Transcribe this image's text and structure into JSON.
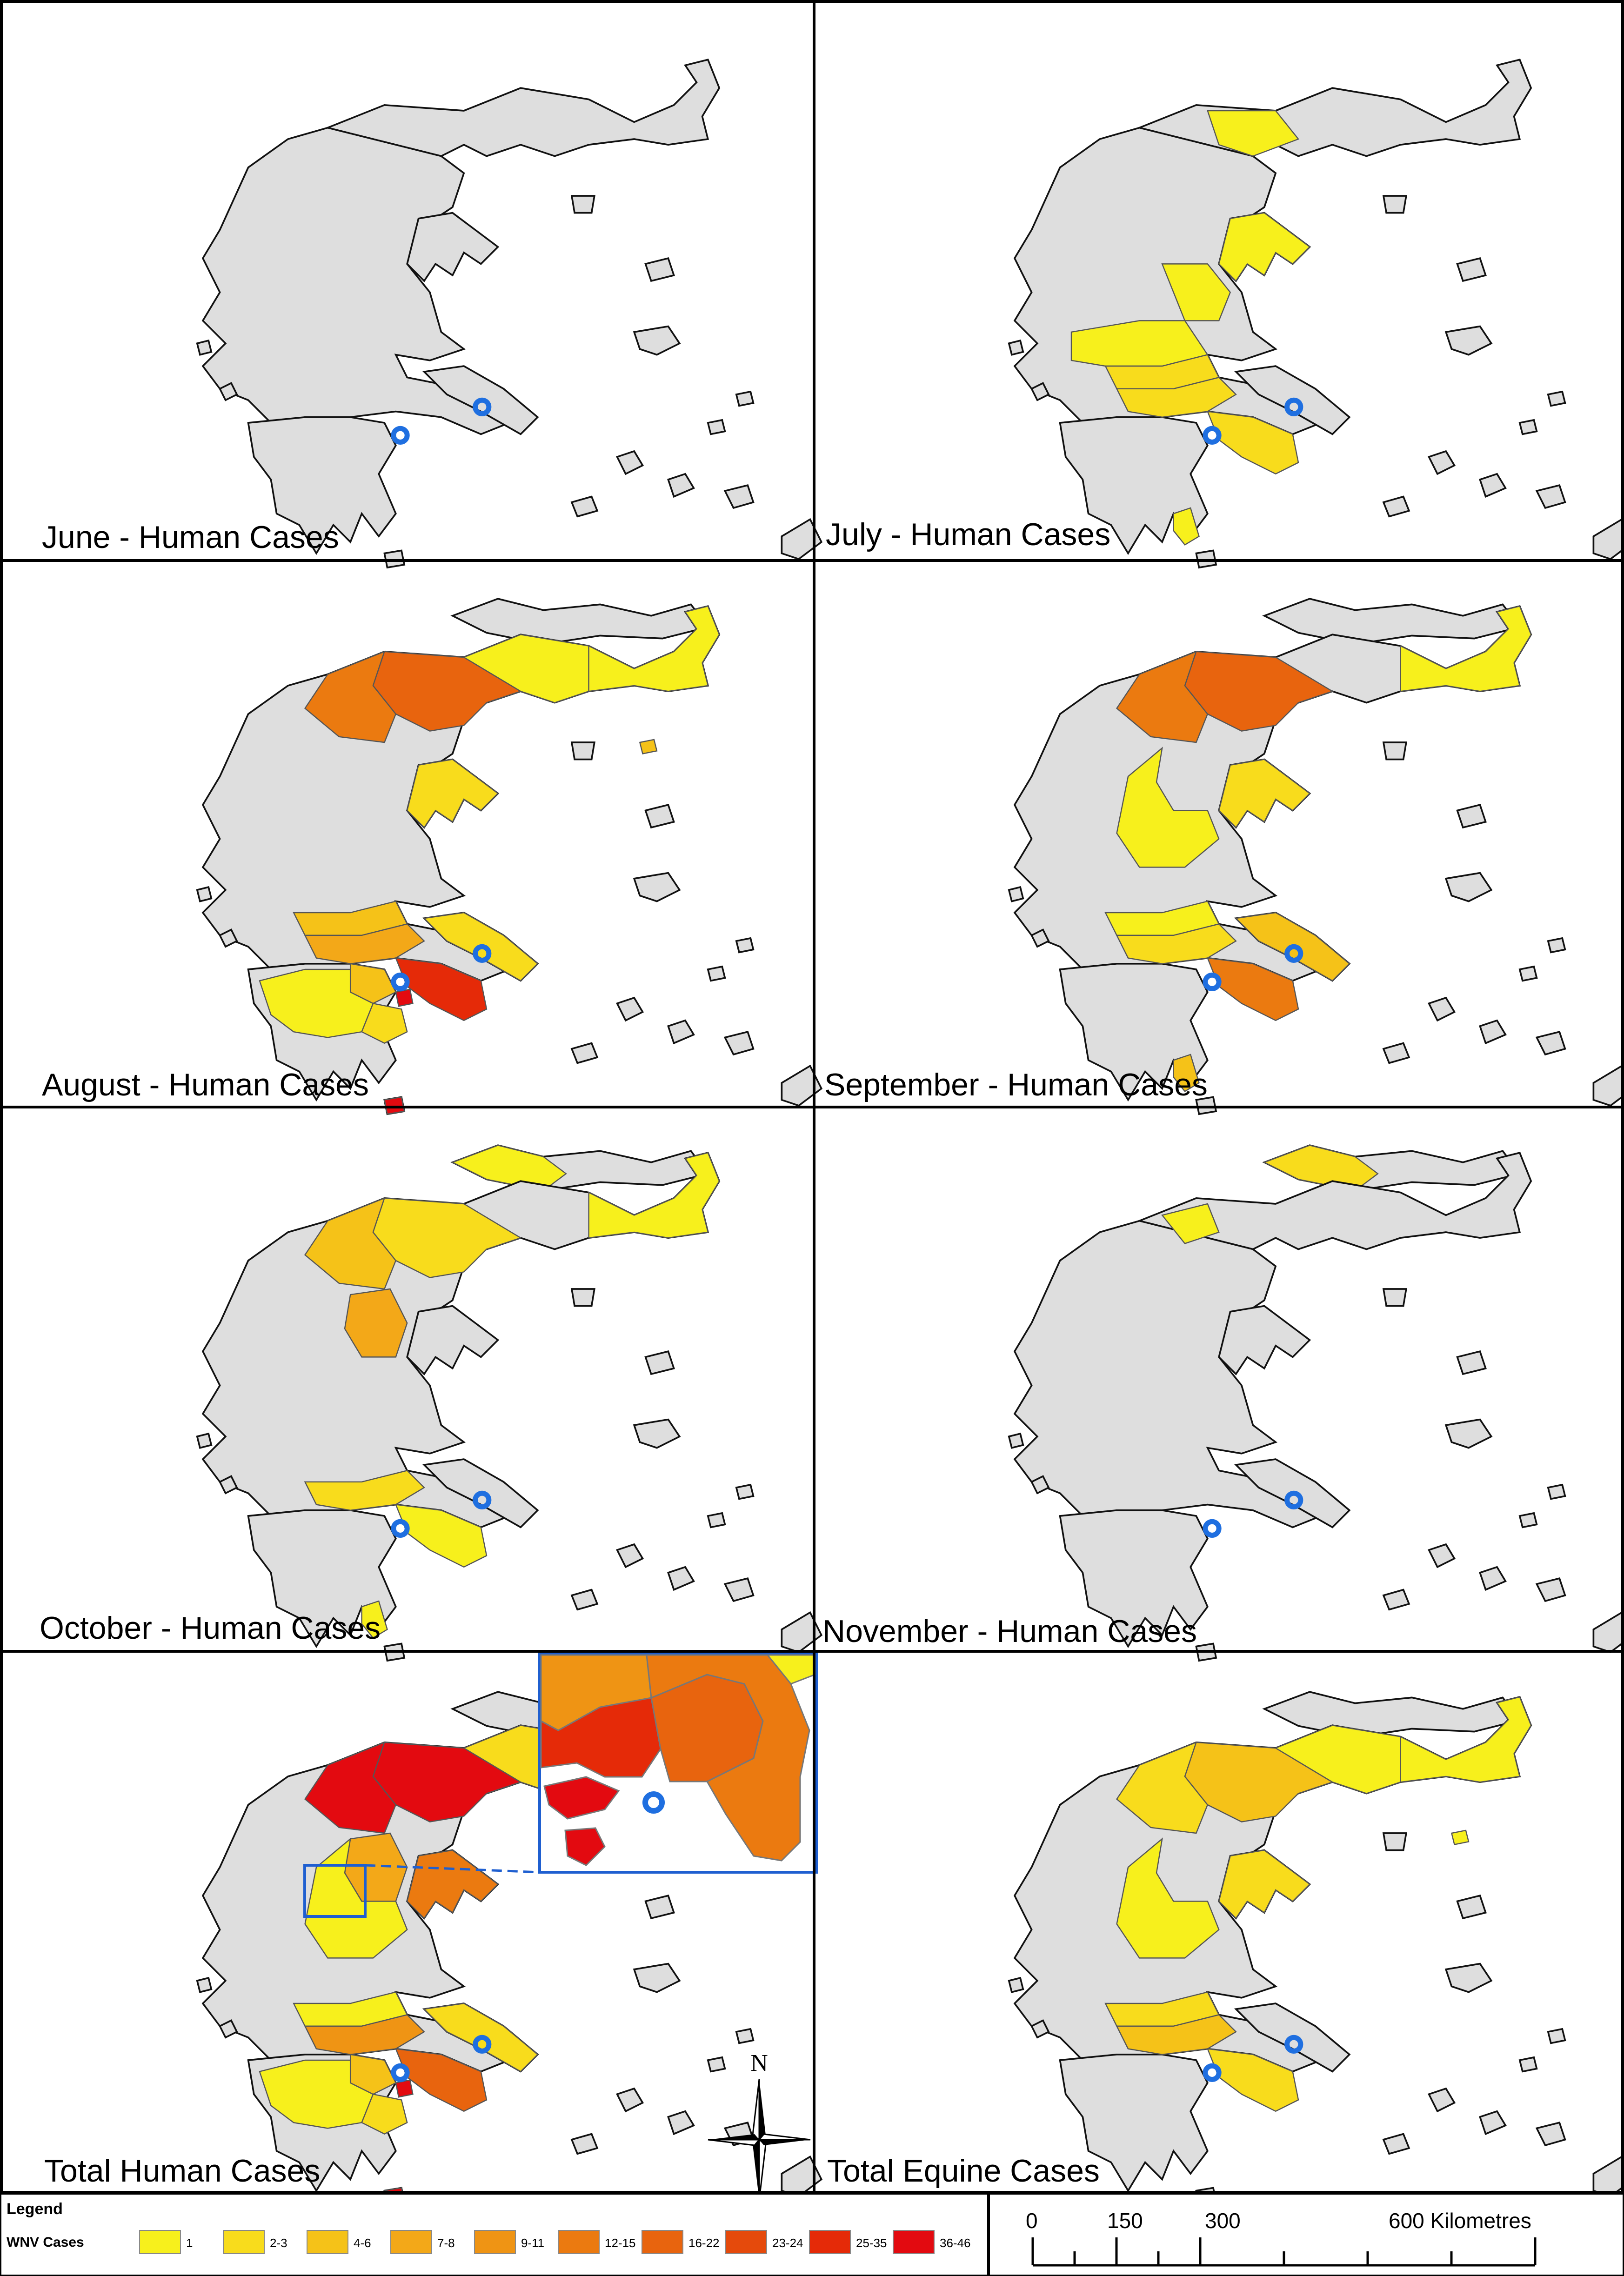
{
  "figure": {
    "panels": [
      {
        "id": "june",
        "title": "June - Human Cases",
        "regions": {}
      },
      {
        "id": "july",
        "title": "July - Human Cases",
        "regions": {
          "thessaloniki-north": "1",
          "chalkidiki": "1",
          "central-greece": "1",
          "larissa": "1",
          "fthiotida": "2-3",
          "boeotia": "2-3",
          "attica": "2-3",
          "laconia": "1"
        }
      },
      {
        "id": "august",
        "title": "August - Human Cases",
        "regions": {
          "west-macedonia": "12-15",
          "central-macedonia": "16-22",
          "kilkis": "1",
          "chalkidiki": "2-3",
          "thrace": "1",
          "thasos": "4-6",
          "fthiotida": "4-6",
          "boeotia": "7-8",
          "evia": "2-3",
          "attica": "25-35",
          "peloponnese": "1",
          "corinth": "4-6",
          "argolida": "2-3",
          "salamina": "36-46",
          "kythira": "36-46",
          "crete": "1"
        }
      },
      {
        "id": "september",
        "title": "September - Human Cases",
        "regions": {
          "west-macedonia": "12-15",
          "central-macedonia": "16-22",
          "chalkidiki": "2-3",
          "thrace": "1",
          "thessaly": "1",
          "fthiotida": "1",
          "boeotia": "2-3",
          "evia": "4-6",
          "attica": "12-15",
          "laconia": "4-6",
          "crete": "2-3"
        }
      },
      {
        "id": "october",
        "title": "October - Human Cases",
        "regions": {
          "west-macedonia": "4-6",
          "central-macedonia": "2-3",
          "thrace": "1",
          "pieria": "7-8",
          "boeotia": "2-3",
          "attica": "1",
          "laconia": "1"
        }
      },
      {
        "id": "november",
        "title": "November - Human Cases",
        "regions": {
          "pella": "1"
        }
      },
      {
        "id": "total-human",
        "title": "Total Human Cases",
        "regions": {
          "west-macedonia": "36-46",
          "central-macedonia": "36-46",
          "kilkis": "2-3",
          "chalkidiki": "12-15",
          "thrace": "4-6",
          "thasos": "4-6",
          "pieria": "7-8",
          "thessaly": "1",
          "fthiotida": "1",
          "boeotia": "9-11",
          "evia": "2-3",
          "attica": "16-22",
          "peloponnese": "1",
          "corinth": "4-6",
          "argolida": "2-3",
          "salamina": "36-46",
          "kythira": "36-46",
          "crete": "2-3"
        }
      },
      {
        "id": "total-equine",
        "title": "Total Equine Cases",
        "regions": {
          "west-macedonia": "2-3",
          "central-macedonia": "4-6",
          "kilkis": "1",
          "chalkidiki": "2-3",
          "thrace": "1",
          "thasos": "1",
          "thessaly": "1",
          "fthiotida": "2-3",
          "boeotia": "4-6",
          "attica": "2-3",
          "crete": "1"
        }
      }
    ],
    "inset": {
      "regions": {
        "west-attica": "25-35",
        "athens": "16-22",
        "east-attica": "12-15",
        "boeotia": "9-11",
        "salamina": "36-46",
        "aegina": "36-46",
        "evia": "1"
      }
    },
    "compass": {
      "label": "N"
    },
    "legend": {
      "title": "Legend",
      "label": "WNV Cases",
      "classes": [
        {
          "label": "1",
          "color": "#f7f01c"
        },
        {
          "label": "2-3",
          "color": "#f8dc1c"
        },
        {
          "label": "4-6",
          "color": "#f5c218"
        },
        {
          "label": "7-8",
          "color": "#f3a818"
        },
        {
          "label": "9-11",
          "color": "#ef9414"
        },
        {
          "label": "12-15",
          "color": "#eb7a10"
        },
        {
          "label": "16-22",
          "color": "#e8640e"
        },
        {
          "label": "23-24",
          "color": "#e54a0c"
        },
        {
          "label": "25-35",
          "color": "#e52a08"
        },
        {
          "label": "36-46",
          "color": "#e30a10"
        }
      ]
    },
    "scalebar": {
      "ticks": [
        "0",
        "150",
        "300",
        "600 Kilometres"
      ]
    },
    "colors": {
      "land": "#dedede",
      "outline": "#555555",
      "marker": "#1f6fe0",
      "frame": "#000000"
    }
  }
}
